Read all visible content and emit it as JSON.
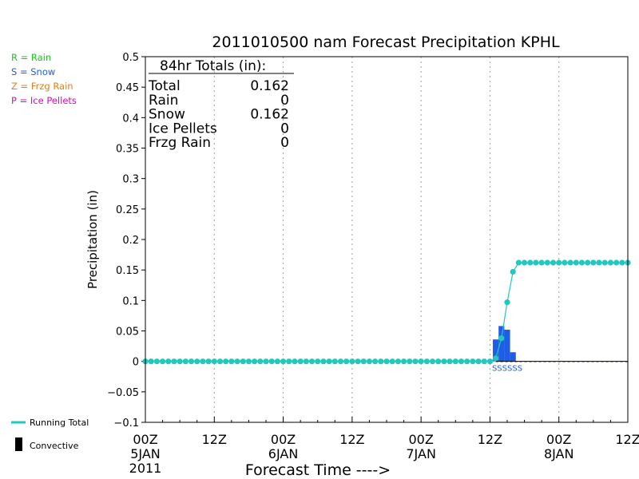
{
  "chart_data": {
    "type": "line",
    "title": "2011010500 nam Forecast Precipitation KPHL",
    "xlabel": "Forecast Time ---->",
    "ylabel": "Precipitation (in)",
    "ylim": [
      -0.1,
      0.5
    ],
    "xlim_hours": [
      0,
      84
    ],
    "y_ticks": [
      "0.5",
      "0.45",
      "0.4",
      "0.35",
      "0.3",
      "0.25",
      "0.2",
      "0.15",
      "0.1",
      "0.05",
      "0",
      "−0.05",
      "−0.1"
    ],
    "x_ticks": [
      {
        "hour": 0,
        "line1": "00Z",
        "line2": "5JAN",
        "line3": "2011"
      },
      {
        "hour": 12,
        "line1": "12Z",
        "line2": "",
        "line3": ""
      },
      {
        "hour": 24,
        "line1": "00Z",
        "line2": "6JAN",
        "line3": ""
      },
      {
        "hour": 36,
        "line1": "12Z",
        "line2": "",
        "line3": ""
      },
      {
        "hour": 48,
        "line1": "00Z",
        "line2": "7JAN",
        "line3": ""
      },
      {
        "hour": 60,
        "line1": "12Z",
        "line2": "",
        "line3": ""
      },
      {
        "hour": 72,
        "line1": "00Z",
        "line2": "8JAN",
        "line3": ""
      },
      {
        "hour": 84,
        "line1": "12Z",
        "line2": "",
        "line3": ""
      }
    ],
    "grid": "vertical dotted",
    "legend_top": [
      {
        "text": "R = Rain",
        "color": "#22c11e"
      },
      {
        "text": "S = Snow",
        "color": "#1e5ee6"
      },
      {
        "text": "Z = Frzg Rain",
        "color": "#e87e10"
      },
      {
        "text": "P = Ice Pellets",
        "color": "#d010b0"
      }
    ],
    "legend_bottom": [
      {
        "text": "Running Total",
        "color": "#22c8c0"
      },
      {
        "text": "Convective",
        "color": "#000000"
      }
    ],
    "totals_box": {
      "header": "84hr Totals (in):",
      "rows": [
        {
          "label": "Total",
          "value": "0.162"
        },
        {
          "label": "Rain",
          "value": "0"
        },
        {
          "label": "Snow",
          "value": "0.162"
        },
        {
          "label": "Ice Pellets",
          "value": "0"
        },
        {
          "label": "Frzg Rain",
          "value": "0"
        }
      ]
    },
    "running_total": {
      "name": "Running Total",
      "color": "#22c8c0",
      "x_hours": [
        0,
        1,
        2,
        3,
        4,
        5,
        6,
        7,
        8,
        9,
        10,
        11,
        12,
        13,
        14,
        15,
        16,
        17,
        18,
        19,
        20,
        21,
        22,
        23,
        24,
        25,
        26,
        27,
        28,
        29,
        30,
        31,
        32,
        33,
        34,
        35,
        36,
        37,
        38,
        39,
        40,
        41,
        42,
        43,
        44,
        45,
        46,
        47,
        48,
        49,
        50,
        51,
        52,
        53,
        54,
        55,
        56,
        57,
        58,
        59,
        60,
        61,
        62,
        63,
        64,
        65,
        66,
        67,
        68,
        69,
        70,
        71,
        72,
        73,
        74,
        75,
        76,
        77,
        78,
        79,
        80,
        81,
        82,
        83,
        84
      ],
      "values": [
        0,
        0,
        0,
        0,
        0,
        0,
        0,
        0,
        0,
        0,
        0,
        0,
        0,
        0,
        0,
        0,
        0,
        0,
        0,
        0,
        0,
        0,
        0,
        0,
        0,
        0,
        0,
        0,
        0,
        0,
        0,
        0,
        0,
        0,
        0,
        0,
        0,
        0,
        0,
        0,
        0,
        0,
        0,
        0,
        0,
        0,
        0,
        0,
        0,
        0,
        0,
        0,
        0,
        0,
        0,
        0,
        0,
        0,
        0,
        0,
        0,
        0.005,
        0.038,
        0.097,
        0.147,
        0.162,
        0.162,
        0.162,
        0.162,
        0.162,
        0.162,
        0.162,
        0.162,
        0.162,
        0.162,
        0.162,
        0.162,
        0.162,
        0.162,
        0.162,
        0.162,
        0.162,
        0.162,
        0.162,
        0.162
      ]
    },
    "snow_bars": {
      "name": "Snow",
      "color": "#1e5ee6",
      "x_hours": [
        61,
        62,
        63,
        64
      ],
      "values": [
        0.036,
        0.058,
        0.052,
        0.015
      ]
    },
    "precip_type_codes": {
      "text": "SSSSSS",
      "hour": 63,
      "color": "#1e5ee6"
    }
  }
}
